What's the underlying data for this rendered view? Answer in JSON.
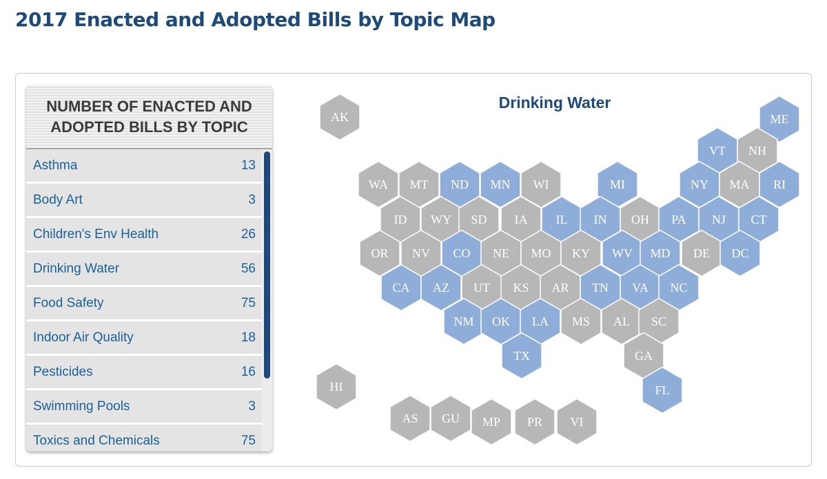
{
  "page": {
    "title": "2017 Enacted and Adopted Bills by Topic Map"
  },
  "panel": {
    "header": "NUMBER OF ENACTED AND ADOPTED BILLS BY TOPIC",
    "topics": [
      {
        "label": "Asthma",
        "count": "13"
      },
      {
        "label": "Body Art",
        "count": "3"
      },
      {
        "label": "Children's Env Health",
        "count": "26"
      },
      {
        "label": "Drinking Water",
        "count": "56"
      },
      {
        "label": "Food Safety",
        "count": "75"
      },
      {
        "label": "Indoor Air Quality",
        "count": "18"
      },
      {
        "label": "Pesticides",
        "count": "16"
      },
      {
        "label": "Swimming Pools",
        "count": "3"
      },
      {
        "label": "Toxics and Chemicals",
        "count": "75"
      }
    ]
  },
  "map": {
    "title": "Drinking Water",
    "colors": {
      "highlighted": "#8eadd8",
      "default": "#b7b7b7",
      "label": "#ffffff"
    },
    "states": [
      {
        "code": "AK",
        "highlighted": false
      },
      {
        "code": "ME",
        "highlighted": true
      },
      {
        "code": "VT",
        "highlighted": true
      },
      {
        "code": "NH",
        "highlighted": false
      },
      {
        "code": "WA",
        "highlighted": false
      },
      {
        "code": "MT",
        "highlighted": false
      },
      {
        "code": "ND",
        "highlighted": true
      },
      {
        "code": "MN",
        "highlighted": true
      },
      {
        "code": "WI",
        "highlighted": false
      },
      {
        "code": "MI",
        "highlighted": true
      },
      {
        "code": "NY",
        "highlighted": true
      },
      {
        "code": "MA",
        "highlighted": false
      },
      {
        "code": "RI",
        "highlighted": true
      },
      {
        "code": "ID",
        "highlighted": false
      },
      {
        "code": "WY",
        "highlighted": false
      },
      {
        "code": "SD",
        "highlighted": false
      },
      {
        "code": "IA",
        "highlighted": false
      },
      {
        "code": "IL",
        "highlighted": true
      },
      {
        "code": "IN",
        "highlighted": true
      },
      {
        "code": "OH",
        "highlighted": false
      },
      {
        "code": "PA",
        "highlighted": true
      },
      {
        "code": "NJ",
        "highlighted": true
      },
      {
        "code": "CT",
        "highlighted": true
      },
      {
        "code": "OR",
        "highlighted": false
      },
      {
        "code": "NV",
        "highlighted": false
      },
      {
        "code": "CO",
        "highlighted": true
      },
      {
        "code": "NE",
        "highlighted": false
      },
      {
        "code": "MO",
        "highlighted": false
      },
      {
        "code": "KY",
        "highlighted": false
      },
      {
        "code": "WV",
        "highlighted": true
      },
      {
        "code": "MD",
        "highlighted": true
      },
      {
        "code": "DE",
        "highlighted": false
      },
      {
        "code": "DC",
        "highlighted": true
      },
      {
        "code": "CA",
        "highlighted": true
      },
      {
        "code": "AZ",
        "highlighted": true
      },
      {
        "code": "UT",
        "highlighted": false
      },
      {
        "code": "KS",
        "highlighted": false
      },
      {
        "code": "AR",
        "highlighted": false
      },
      {
        "code": "TN",
        "highlighted": true
      },
      {
        "code": "VA",
        "highlighted": true
      },
      {
        "code": "NC",
        "highlighted": true
      },
      {
        "code": "NM",
        "highlighted": true
      },
      {
        "code": "OK",
        "highlighted": true
      },
      {
        "code": "LA",
        "highlighted": true
      },
      {
        "code": "MS",
        "highlighted": false
      },
      {
        "code": "AL",
        "highlighted": false
      },
      {
        "code": "SC",
        "highlighted": false
      },
      {
        "code": "TX",
        "highlighted": true
      },
      {
        "code": "GA",
        "highlighted": false
      },
      {
        "code": "HI",
        "highlighted": false
      },
      {
        "code": "FL",
        "highlighted": true
      },
      {
        "code": "AS",
        "highlighted": false
      },
      {
        "code": "GU",
        "highlighted": false
      },
      {
        "code": "MP",
        "highlighted": false
      },
      {
        "code": "PR",
        "highlighted": false
      },
      {
        "code": "VI",
        "highlighted": false
      }
    ]
  }
}
